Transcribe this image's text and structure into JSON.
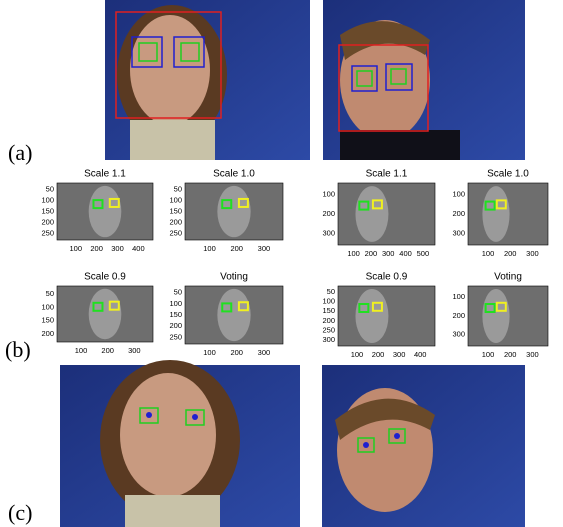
{
  "labels": [
    "(a)",
    "(b)",
    "(c)"
  ],
  "subplots": [
    {
      "title": "Scale 1.1",
      "yticks": [
        "50",
        "100",
        "150",
        "200",
        "250"
      ],
      "xticks": [
        "100",
        "200",
        "300",
        "400"
      ]
    },
    {
      "title": "Scale 1.0",
      "yticks": [
        "50",
        "100",
        "150",
        "200",
        "250"
      ],
      "xticks": [
        "100",
        "200",
        "300"
      ]
    },
    {
      "title": "Scale 0.9",
      "yticks": [
        "50",
        "100",
        "150",
        "200"
      ],
      "xticks": [
        "100",
        "200",
        "300"
      ]
    },
    {
      "title": "Voting",
      "yticks": [
        "50",
        "100",
        "150",
        "200",
        "250"
      ],
      "xticks": [
        "100",
        "200",
        "300"
      ]
    },
    {
      "title": "Scale 1.1",
      "yticks": [
        "100",
        "200",
        "300"
      ],
      "xticks": [
        "100",
        "200",
        "300",
        "400",
        "500"
      ]
    },
    {
      "title": "Scale 1.0",
      "yticks": [
        "100",
        "200",
        "300"
      ],
      "xticks": [
        "100",
        "200",
        "300"
      ]
    },
    {
      "title": "Scale 0.9",
      "yticks": [
        "50",
        "100",
        "150",
        "200",
        "250",
        "300"
      ],
      "xticks": [
        "100",
        "200",
        "300",
        "400"
      ]
    },
    {
      "title": "Voting",
      "yticks": [
        "100",
        "200",
        "300"
      ],
      "xticks": [
        "100",
        "200",
        "300"
      ]
    }
  ]
}
